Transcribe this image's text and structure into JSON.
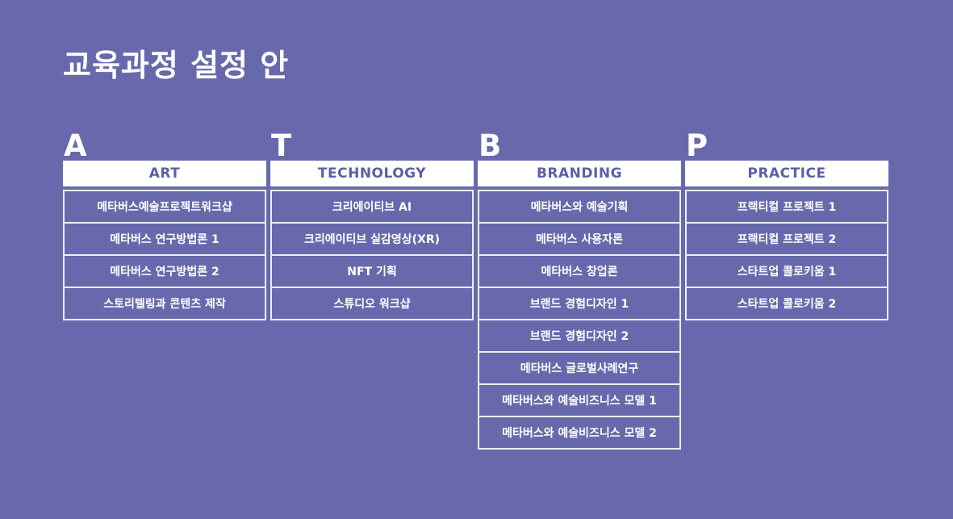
{
  "slide": {
    "title": "교육과정 설정 안"
  },
  "colors": {
    "background": "#6869ad",
    "header_background": "#ffffff",
    "header_text": "#5d5fa7",
    "cell_border": "#ededf6",
    "cell_text": "#ffffff",
    "title_text": "#ffffff"
  },
  "columns": [
    {
      "letter": "A",
      "title": "ART",
      "items": [
        "메타버스예술프로젝트워크샵",
        "메타버스 연구방법론 1",
        "메타버스 연구방법론 2",
        "스토리텔링과 콘텐츠 제작"
      ]
    },
    {
      "letter": "T",
      "title": "TECHNOLOGY",
      "items": [
        "크리에이티브 AI",
        "크리에이티브 실감영상(XR)",
        "NFT 기획",
        "스튜디오 워크샵"
      ]
    },
    {
      "letter": "B",
      "title": "BRANDING",
      "items": [
        "메타버스와 예술기획",
        "메타버스 사용자론",
        "메타버스 창업론",
        "브랜드 경험디자인 1",
        "브랜드 경험디자인 2",
        "메타버스 글로벌사례연구",
        "메타버스와 예술비즈니스 모델 1",
        "메타버스와 예술비즈니스 모델 2"
      ]
    },
    {
      "letter": "P",
      "title": "PRACTICE",
      "items": [
        "프랙티컬 프로젝트 1",
        "프랙티컬 프로젝트 2",
        "스타트업 콜로키움 1",
        "스타트업 콜로키움 2"
      ]
    }
  ]
}
